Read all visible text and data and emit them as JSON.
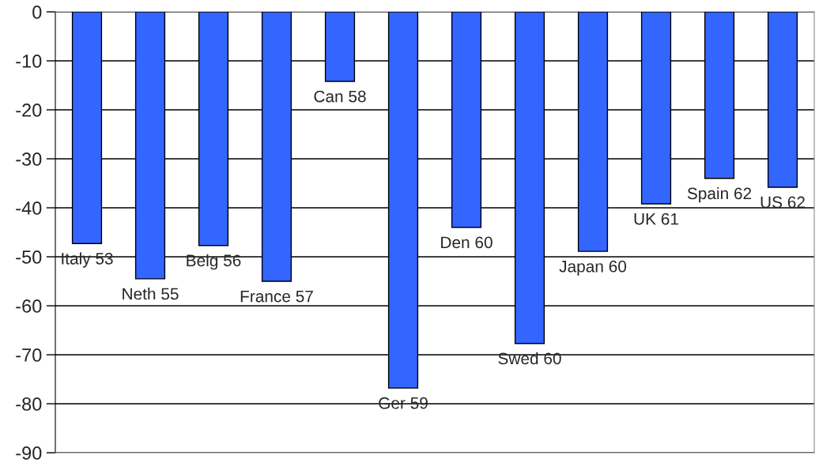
{
  "chart_data": {
    "type": "bar",
    "categories": [
      "Italy 53",
      "Neth 55",
      "Belg 56",
      "France 57",
      "Can 58",
      "Ger 59",
      "Den 60",
      "Swed 60",
      "Japan 60",
      "UK 61",
      "Spain 62",
      "US 62"
    ],
    "values": [
      -47.3,
      -54.5,
      -47.7,
      -55.0,
      -14.2,
      -76.8,
      -44.0,
      -67.7,
      -48.9,
      -39.2,
      -34.0,
      -35.8
    ],
    "color": "#3366ff",
    "ylim": [
      -90,
      0
    ],
    "yticks": [
      0,
      -10,
      -20,
      -30,
      -40,
      -50,
      -60,
      -70,
      -80,
      -90
    ],
    "grid": "y"
  }
}
